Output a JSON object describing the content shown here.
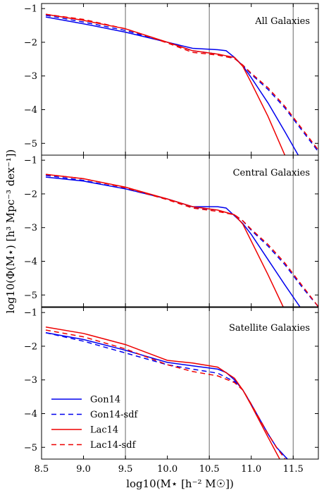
{
  "chart_data": {
    "type": "line",
    "xlabel": "log10(M⋆ [h⁻² M☉])",
    "ylabel": "log10(Φ(M⋆) [h³ Mpc⁻³ dex⁻¹])",
    "xlim": [
      8.5,
      11.8
    ],
    "ylim": [
      -5.35,
      -0.85
    ],
    "x_ticks": [
      "8.5",
      "9.0",
      "9.5",
      "10.0",
      "10.5",
      "11.0",
      "11.5"
    ],
    "y_ticks": [
      "−1",
      "−2",
      "−3",
      "−4",
      "−5"
    ],
    "vertical_lines": [
      9.5,
      10.5,
      11.5
    ],
    "grid": false,
    "legend": {
      "placement": "lower-left of bottom panel",
      "entries": [
        {
          "name": "Gon14",
          "color": "#0000ee",
          "style": "solid"
        },
        {
          "name": "Gon14-sdf",
          "color": "#0000ee",
          "style": "dashed"
        },
        {
          "name": "Lac14",
          "color": "#ee0000",
          "style": "solid"
        },
        {
          "name": "Lac14-sdf",
          "color": "#ee0000",
          "style": "dashed"
        }
      ]
    },
    "panels": [
      {
        "title": "All Galaxies",
        "series": [
          {
            "name": "Gon14",
            "x": [
              8.55,
              9.0,
              9.5,
              10.0,
              10.3,
              10.6,
              10.7,
              10.8,
              10.9,
              11.0,
              11.2,
              11.4,
              11.56
            ],
            "y": [
              -1.25,
              -1.45,
              -1.7,
              -2.0,
              -2.18,
              -2.22,
              -2.25,
              -2.45,
              -2.7,
              -3.05,
              -3.8,
              -4.65,
              -5.35
            ]
          },
          {
            "name": "Gon14-sdf",
            "x": [
              8.55,
              9.0,
              9.5,
              10.0,
              10.3,
              10.6,
              10.8,
              10.9,
              11.0,
              11.2,
              11.4,
              11.6,
              11.8
            ],
            "y": [
              -1.2,
              -1.4,
              -1.65,
              -2.0,
              -2.25,
              -2.35,
              -2.48,
              -2.68,
              -2.95,
              -3.4,
              -3.95,
              -4.6,
              -5.25
            ]
          },
          {
            "name": "Lac14",
            "x": [
              8.55,
              9.0,
              9.5,
              10.0,
              10.3,
              10.6,
              10.8,
              10.9,
              11.0,
              11.2,
              11.4
            ],
            "y": [
              -1.17,
              -1.35,
              -1.6,
              -2.0,
              -2.25,
              -2.35,
              -2.45,
              -2.72,
              -3.2,
              -4.2,
              -5.35
            ]
          },
          {
            "name": "Lac14-sdf",
            "x": [
              8.55,
              9.0,
              9.5,
              10.0,
              10.3,
              10.6,
              10.8,
              10.9,
              11.0,
              11.2,
              11.4,
              11.6,
              11.8
            ],
            "y": [
              -1.17,
              -1.32,
              -1.6,
              -2.02,
              -2.3,
              -2.38,
              -2.48,
              -2.68,
              -2.92,
              -3.35,
              -3.9,
              -4.55,
              -5.2
            ]
          }
        ]
      },
      {
        "title": "Central Galaxies",
        "series": [
          {
            "name": "Gon14",
            "x": [
              8.55,
              9.0,
              9.5,
              10.0,
              10.3,
              10.6,
              10.7,
              10.8,
              10.9,
              11.0,
              11.2,
              11.4,
              11.58
            ],
            "y": [
              -1.5,
              -1.62,
              -1.85,
              -2.15,
              -2.38,
              -2.38,
              -2.42,
              -2.65,
              -2.88,
              -3.2,
              -3.95,
              -4.7,
              -5.35
            ]
          },
          {
            "name": "Gon14-sdf",
            "x": [
              8.55,
              9.0,
              9.5,
              10.0,
              10.3,
              10.6,
              10.8,
              10.9,
              11.0,
              11.2,
              11.4,
              11.6,
              11.8
            ],
            "y": [
              -1.45,
              -1.6,
              -1.85,
              -2.15,
              -2.4,
              -2.48,
              -2.62,
              -2.8,
              -3.08,
              -3.55,
              -4.1,
              -4.75,
              -5.35
            ]
          },
          {
            "name": "Lac14",
            "x": [
              8.55,
              9.0,
              9.5,
              10.0,
              10.3,
              10.6,
              10.8,
              10.9,
              11.0,
              11.2,
              11.38
            ],
            "y": [
              -1.42,
              -1.55,
              -1.8,
              -2.15,
              -2.38,
              -2.48,
              -2.62,
              -2.9,
              -3.4,
              -4.4,
              -5.35
            ]
          },
          {
            "name": "Lac14-sdf",
            "x": [
              8.55,
              9.0,
              9.5,
              10.0,
              10.3,
              10.6,
              10.8,
              10.9,
              11.0,
              11.2,
              11.4,
              11.6,
              11.8
            ],
            "y": [
              -1.42,
              -1.55,
              -1.82,
              -2.17,
              -2.42,
              -2.52,
              -2.62,
              -2.8,
              -3.05,
              -3.5,
              -4.05,
              -4.7,
              -5.35
            ]
          }
        ]
      },
      {
        "title": "Satellite Galaxies",
        "series": [
          {
            "name": "Gon14",
            "x": [
              8.55,
              9.0,
              9.5,
              10.0,
              10.3,
              10.6,
              10.7,
              10.8,
              10.9,
              11.0,
              11.2,
              11.3,
              11.45
            ],
            "y": [
              -1.6,
              -1.8,
              -2.12,
              -2.48,
              -2.58,
              -2.68,
              -2.78,
              -3.0,
              -3.3,
              -3.72,
              -4.6,
              -5.0,
              -5.4
            ]
          },
          {
            "name": "Gon14-sdf",
            "x": [
              8.55,
              9.0,
              9.5,
              10.0,
              10.3,
              10.6,
              10.8,
              10.9,
              11.0,
              11.2,
              11.3,
              11.45
            ],
            "y": [
              -1.6,
              -1.85,
              -2.2,
              -2.55,
              -2.68,
              -2.8,
              -3.05,
              -3.3,
              -3.72,
              -4.6,
              -5.0,
              -5.4
            ]
          },
          {
            "name": "Lac14",
            "x": [
              8.55,
              9.0,
              9.5,
              10.0,
              10.3,
              10.6,
              10.8,
              10.9,
              11.0,
              11.2,
              11.35
            ],
            "y": [
              -1.43,
              -1.62,
              -1.95,
              -2.42,
              -2.5,
              -2.62,
              -2.95,
              -3.3,
              -3.75,
              -4.7,
              -5.4
            ]
          },
          {
            "name": "Lac14-sdf",
            "x": [
              8.55,
              9.0,
              9.5,
              10.0,
              10.3,
              10.6,
              10.8,
              10.9,
              11.0,
              11.2,
              11.3,
              11.42
            ],
            "y": [
              -1.52,
              -1.72,
              -2.08,
              -2.55,
              -2.75,
              -2.88,
              -3.08,
              -3.3,
              -3.72,
              -4.6,
              -5.0,
              -5.4
            ]
          }
        ]
      }
    ]
  }
}
